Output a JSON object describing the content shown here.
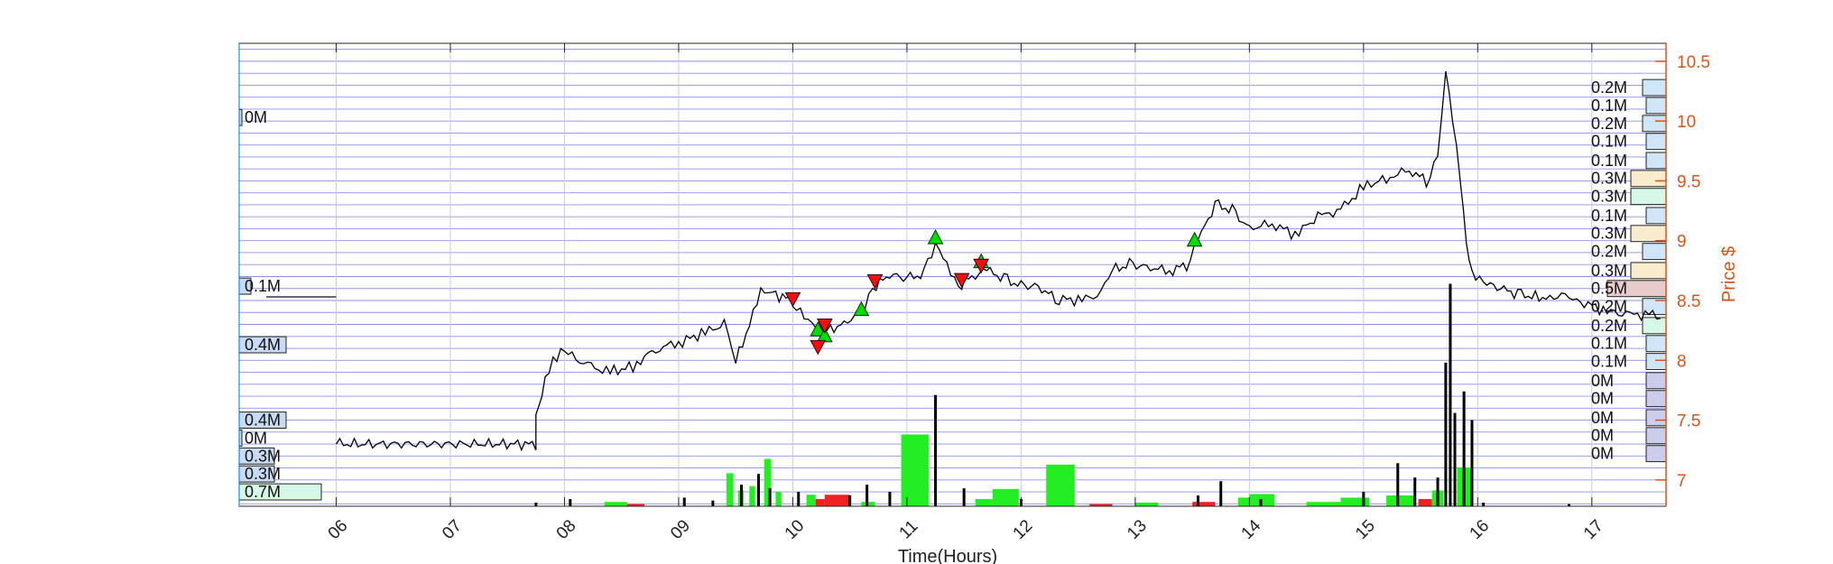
{
  "chart_data": {
    "type": "line",
    "xlabel": "Time(Hours)",
    "ylabel": "Price $",
    "xlim": [
      5.15,
      17.65
    ],
    "ylim": [
      6.78,
      10.65
    ],
    "x_ticks": [
      "06",
      "07",
      "08",
      "09",
      "10",
      "11",
      "12",
      "13",
      "14",
      "15",
      "16",
      "17"
    ],
    "y_ticks": [
      "7",
      "7.5",
      "8",
      "8.5",
      "9",
      "9.5",
      "10",
      "10.5"
    ],
    "grid": true,
    "price_series": [
      [
        6.0,
        7.3
      ],
      [
        7.75,
        7.3
      ],
      [
        7.75,
        7.5
      ],
      [
        7.83,
        7.85
      ],
      [
        7.9,
        8.02
      ],
      [
        8.0,
        8.08
      ],
      [
        8.2,
        7.95
      ],
      [
        8.4,
        7.9
      ],
      [
        8.6,
        7.95
      ],
      [
        8.8,
        8.1
      ],
      [
        9.0,
        8.15
      ],
      [
        9.2,
        8.22
      ],
      [
        9.4,
        8.3
      ],
      [
        9.5,
        7.98
      ],
      [
        9.62,
        8.3
      ],
      [
        9.72,
        8.6
      ],
      [
        9.85,
        8.55
      ],
      [
        10.0,
        8.5
      ],
      [
        10.1,
        8.35
      ],
      [
        10.2,
        8.28
      ],
      [
        10.3,
        8.25
      ],
      [
        10.45,
        8.3
      ],
      [
        10.6,
        8.42
      ],
      [
        10.7,
        8.6
      ],
      [
        10.85,
        8.72
      ],
      [
        11.0,
        8.68
      ],
      [
        11.15,
        8.72
      ],
      [
        11.25,
        8.98
      ],
      [
        11.35,
        8.82
      ],
      [
        11.45,
        8.62
      ],
      [
        11.6,
        8.72
      ],
      [
        11.7,
        8.75
      ],
      [
        11.85,
        8.68
      ],
      [
        12.0,
        8.62
      ],
      [
        12.15,
        8.62
      ],
      [
        12.3,
        8.52
      ],
      [
        12.5,
        8.5
      ],
      [
        12.7,
        8.55
      ],
      [
        12.8,
        8.75
      ],
      [
        12.95,
        8.8
      ],
      [
        13.1,
        8.78
      ],
      [
        13.3,
        8.75
      ],
      [
        13.45,
        8.8
      ],
      [
        13.55,
        9.0
      ],
      [
        13.7,
        9.3
      ],
      [
        13.85,
        9.25
      ],
      [
        14.0,
        9.1
      ],
      [
        14.2,
        9.15
      ],
      [
        14.4,
        9.05
      ],
      [
        14.6,
        9.2
      ],
      [
        14.8,
        9.25
      ],
      [
        15.0,
        9.45
      ],
      [
        15.2,
        9.52
      ],
      [
        15.4,
        9.6
      ],
      [
        15.55,
        9.5
      ],
      [
        15.65,
        9.7
      ],
      [
        15.72,
        10.4
      ],
      [
        15.78,
        10.0
      ],
      [
        15.85,
        9.5
      ],
      [
        15.9,
        9.0
      ],
      [
        15.95,
        8.75
      ],
      [
        16.05,
        8.65
      ],
      [
        16.2,
        8.6
      ],
      [
        16.35,
        8.55
      ],
      [
        16.6,
        8.52
      ],
      [
        16.8,
        8.55
      ],
      [
        16.9,
        8.5
      ],
      [
        17.1,
        8.42
      ],
      [
        17.3,
        8.38
      ],
      [
        17.5,
        8.38
      ],
      [
        17.6,
        8.35
      ]
    ],
    "buy_signals": [
      [
        10.22,
        8.25
      ],
      [
        10.28,
        8.2
      ],
      [
        10.6,
        8.42
      ],
      [
        11.25,
        9.02
      ],
      [
        11.65,
        8.82
      ],
      [
        13.52,
        9.0
      ]
    ],
    "sell_signals": [
      [
        10.0,
        8.52
      ],
      [
        10.22,
        8.12
      ],
      [
        10.28,
        8.3
      ],
      [
        10.72,
        8.67
      ],
      [
        11.48,
        8.68
      ],
      [
        11.65,
        8.8
      ]
    ],
    "volume_bars": [
      {
        "x": 8.35,
        "w": 0.2,
        "h": 0.06,
        "color": "green"
      },
      {
        "x": 8.55,
        "w": 0.15,
        "h": 0.03,
        "color": "red"
      },
      {
        "x": 9.42,
        "w": 0.06,
        "h": 0.46,
        "color": "green"
      },
      {
        "x": 9.52,
        "w": 0.05,
        "h": 0.22,
        "color": "green"
      },
      {
        "x": 9.62,
        "w": 0.05,
        "h": 0.28,
        "color": "green"
      },
      {
        "x": 9.75,
        "w": 0.06,
        "h": 0.66,
        "color": "green"
      },
      {
        "x": 9.85,
        "w": 0.05,
        "h": 0.2,
        "color": "green"
      },
      {
        "x": 10.12,
        "w": 0.08,
        "h": 0.16,
        "color": "green"
      },
      {
        "x": 10.2,
        "w": 0.08,
        "h": 0.1,
        "color": "red"
      },
      {
        "x": 10.28,
        "w": 0.22,
        "h": 0.16,
        "color": "red"
      },
      {
        "x": 10.6,
        "w": 0.12,
        "h": 0.06,
        "color": "green"
      },
      {
        "x": 10.95,
        "w": 0.24,
        "h": 1.0,
        "color": "green"
      },
      {
        "x": 11.6,
        "w": 0.15,
        "h": 0.1,
        "color": "green"
      },
      {
        "x": 11.75,
        "w": 0.23,
        "h": 0.24,
        "color": "green"
      },
      {
        "x": 12.22,
        "w": 0.25,
        "h": 0.58,
        "color": "green"
      },
      {
        "x": 12.6,
        "w": 0.2,
        "h": 0.03,
        "color": "red"
      },
      {
        "x": 13.0,
        "w": 0.2,
        "h": 0.05,
        "color": "green"
      },
      {
        "x": 13.5,
        "w": 0.2,
        "h": 0.06,
        "color": "red"
      },
      {
        "x": 13.9,
        "w": 0.15,
        "h": 0.12,
        "color": "green"
      },
      {
        "x": 14.0,
        "w": 0.22,
        "h": 0.17,
        "color": "green"
      },
      {
        "x": 14.5,
        "w": 0.3,
        "h": 0.06,
        "color": "green"
      },
      {
        "x": 14.8,
        "w": 0.25,
        "h": 0.12,
        "color": "green"
      },
      {
        "x": 15.2,
        "w": 0.25,
        "h": 0.15,
        "color": "green"
      },
      {
        "x": 15.48,
        "w": 0.12,
        "h": 0.1,
        "color": "red"
      },
      {
        "x": 15.6,
        "w": 0.1,
        "h": 0.22,
        "color": "green"
      },
      {
        "x": 15.82,
        "w": 0.12,
        "h": 0.54,
        "color": "green"
      }
    ],
    "volume_spikes": [
      [
        7.75,
        0.05
      ],
      [
        8.05,
        0.1
      ],
      [
        9.05,
        0.12
      ],
      [
        9.3,
        0.08
      ],
      [
        9.55,
        0.3
      ],
      [
        9.7,
        0.45
      ],
      [
        9.8,
        0.25
      ],
      [
        10.05,
        0.2
      ],
      [
        10.5,
        0.15
      ],
      [
        10.65,
        0.3
      ],
      [
        10.85,
        0.2
      ],
      [
        11.25,
        1.55
      ],
      [
        11.5,
        0.25
      ],
      [
        12.0,
        0.1
      ],
      [
        13.55,
        0.15
      ],
      [
        13.75,
        0.35
      ],
      [
        14.1,
        0.1
      ],
      [
        15.0,
        0.2
      ],
      [
        15.3,
        0.6
      ],
      [
        15.45,
        0.4
      ],
      [
        15.65,
        0.4
      ],
      [
        15.72,
        2.0
      ],
      [
        15.76,
        3.1
      ],
      [
        15.8,
        1.3
      ],
      [
        15.88,
        1.6
      ],
      [
        15.95,
        1.2
      ],
      [
        16.05,
        0.05
      ],
      [
        16.8,
        0.03
      ]
    ],
    "left_volume_profile": [
      {
        "label": "0M",
        "price": 10.03,
        "value": 0.01,
        "color": "#c8daf4"
      },
      {
        "label": "0.1M",
        "price": 8.62,
        "value": 0.1,
        "color": "#c8daf4"
      },
      {
        "label": "0.4M",
        "price": 8.13,
        "value": 0.4,
        "color": "#c8daf4"
      },
      {
        "label": "0.4M",
        "price": 7.5,
        "value": 0.4,
        "color": "#c8daf4"
      },
      {
        "label": "0M",
        "price": 7.35,
        "value": 0.01,
        "color": "#c8daf4"
      },
      {
        "label": "0.3M",
        "price": 7.2,
        "value": 0.3,
        "color": "#c8daf4"
      },
      {
        "label": "0.3M",
        "price": 7.05,
        "value": 0.3,
        "color": "#c8daf4"
      },
      {
        "label": "0.7M",
        "price": 6.9,
        "value": 0.7,
        "color": "#d6f8e6"
      }
    ],
    "right_volume_profile": [
      {
        "label": "0.2M",
        "price": 10.28,
        "value": 0.2,
        "color": "#cfe6f8"
      },
      {
        "label": "0.1M",
        "price": 10.13,
        "value": 0.1,
        "color": "#cfe6f8"
      },
      {
        "label": "0.2M",
        "price": 9.98,
        "value": 0.2,
        "color": "#cfe6f8"
      },
      {
        "label": "0.1M",
        "price": 9.83,
        "value": 0.1,
        "color": "#cfe6f8"
      },
      {
        "label": "0.1M",
        "price": 9.67,
        "value": 0.1,
        "color": "#cfe6f8"
      },
      {
        "label": "0.3M",
        "price": 9.52,
        "value": 0.3,
        "color": "#f8eccc"
      },
      {
        "label": "0.3M",
        "price": 9.37,
        "value": 0.3,
        "color": "#d6f8e6"
      },
      {
        "label": "0.1M",
        "price": 9.21,
        "value": 0.1,
        "color": "#cfe6f8"
      },
      {
        "label": "0.3M",
        "price": 9.06,
        "value": 0.3,
        "color": "#f8eccc"
      },
      {
        "label": "0.2M",
        "price": 8.91,
        "value": 0.2,
        "color": "#cfe6f8"
      },
      {
        "label": "0.3M",
        "price": 8.75,
        "value": 0.3,
        "color": "#f8eccc"
      },
      {
        "label": "0.5M",
        "price": 8.6,
        "value": 0.5,
        "color": "#e8cccc"
      },
      {
        "label": "0.2M",
        "price": 8.45,
        "value": 0.2,
        "color": "#cfe6f8"
      },
      {
        "label": "0.2M",
        "price": 8.29,
        "value": 0.2,
        "color": "#d6f8e6"
      },
      {
        "label": "0.1M",
        "price": 8.14,
        "value": 0.1,
        "color": "#cfe6f8"
      },
      {
        "label": "0.1M",
        "price": 7.99,
        "value": 0.1,
        "color": "#cfe6f8"
      },
      {
        "label": "0M",
        "price": 7.83,
        "value": 0.0,
        "color": "#ccccec"
      },
      {
        "label": "0M",
        "price": 7.68,
        "value": 0.0,
        "color": "#ccccec"
      },
      {
        "label": "0M",
        "price": 7.52,
        "value": 0.0,
        "color": "#ccccec"
      },
      {
        "label": "0M",
        "price": 7.37,
        "value": 0.0,
        "color": "#ccccec"
      },
      {
        "label": "0M",
        "price": 7.22,
        "value": 0.0,
        "color": "#ccccec"
      }
    ],
    "colors": {
      "price": "#000000",
      "buy": "#00dd00",
      "sell": "#ee1111",
      "vol_green": "#22ee22",
      "vol_red": "#ee2222",
      "right_axis": "#d95319",
      "grid_h": "#8f8fe8",
      "grid_v": "#c8c8f0"
    }
  }
}
